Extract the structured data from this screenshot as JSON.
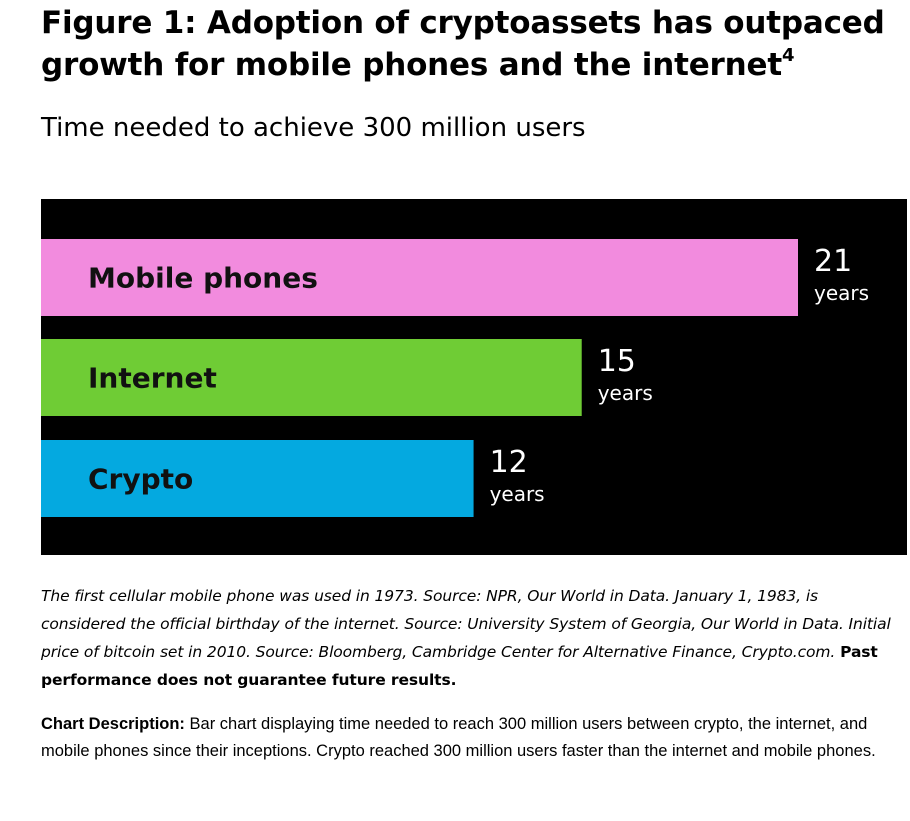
{
  "header": {
    "title": "Figure 1: Adoption of cryptoassets has outpaced growth for mobile phones and the internet",
    "title_footnote": "4",
    "subtitle": "Time needed to achieve 300 million users"
  },
  "chart_data": {
    "type": "bar",
    "orientation": "horizontal",
    "title": "Time needed to achieve 300 million users",
    "categories": [
      "Mobile phones",
      "Internet",
      "Crypto"
    ],
    "values": [
      21,
      15,
      12
    ],
    "value_labels": [
      "21",
      "15",
      "12"
    ],
    "unit": "years",
    "colors": [
      "#F28BDE",
      "#6FCC35",
      "#04A9E0"
    ],
    "background": "#000000",
    "xlabel": "",
    "ylabel": "",
    "xlim": [
      0,
      24
    ],
    "grid": false,
    "legend": "none"
  },
  "caption": {
    "text": "The first cellular mobile phone was used in 1973. Source: NPR, Our World in Data. January 1, 1983, is considered the official birthday of the internet. Source: University System of Georgia, Our World in Data. Initial price of bitcoin set in 2010. Source: Bloomberg, Cambridge Center for Alternative Finance, Crypto.com.",
    "emphasis": "Past performance does not guarantee future results."
  },
  "description": {
    "label": "Chart Description:",
    "text": "Bar chart displaying time needed to reach 300 million users between crypto, the internet, and mobile phones since their inceptions. Crypto reached 300 million users faster than the internet and mobile phones."
  }
}
